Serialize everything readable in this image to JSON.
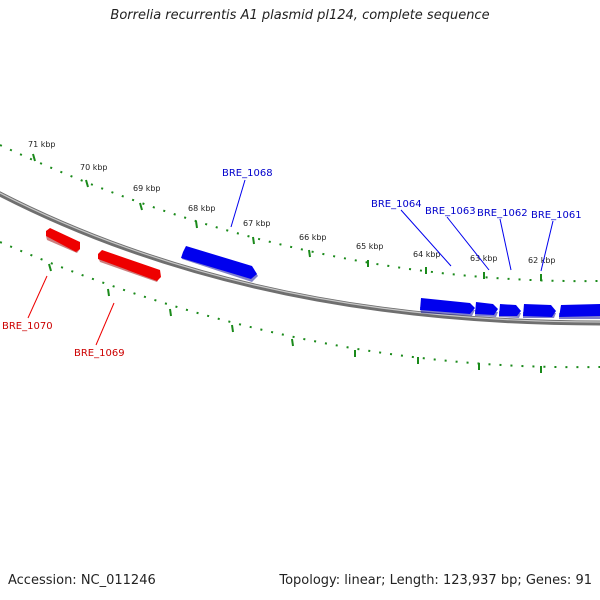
{
  "title": "Borrelia recurrentis A1 plasmid pl124, complete sequence",
  "accession_text": "Accession: NC_011246",
  "summary_text": "Topology: linear; Length: 123,937 bp; Genes: 91",
  "colors": {
    "forward_gene": "#0000ee",
    "reverse_gene": "#ee0000",
    "scale_ticks": "#1a8a1a",
    "backbone": "#808080"
  },
  "kbp_labels": [
    "71 kbp",
    "70 kbp",
    "69 kbp",
    "68 kbp",
    "67 kbp",
    "66 kbp",
    "65 kbp",
    "64 kbp",
    "63 kbp",
    "62 kbp"
  ],
  "gene_labels": {
    "bre_1068": "BRE_1068",
    "bre_1064": "BRE_1064",
    "bre_1063": "BRE_1063",
    "bre_1062": "BRE_1062",
    "bre_1061": "BRE_1061",
    "bre_1070": "BRE_1070",
    "bre_1069": "BRE_1069"
  }
}
